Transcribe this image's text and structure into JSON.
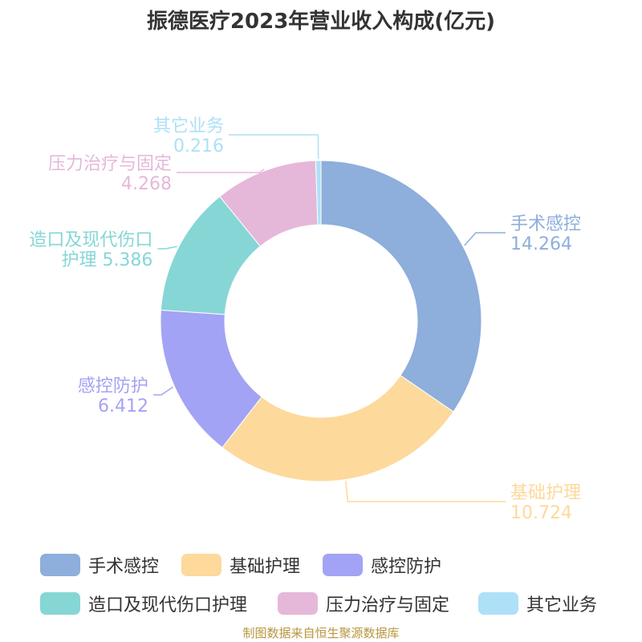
{
  "chart_data": {
    "type": "pie",
    "variant": "donut",
    "title": "振德医疗2023年营业收入构成(亿元)",
    "series": [
      {
        "name": "手术感控",
        "value": 14.264,
        "value_label": "14.264",
        "color": "#8eaedb"
      },
      {
        "name": "基础护理",
        "value": 10.724,
        "value_label": "10.724",
        "color": "#fdd99b"
      },
      {
        "name": "感控防护",
        "value": 6.412,
        "value_label": "6.412",
        "color": "#a3a3f5"
      },
      {
        "name": "造口及现代伤口护理",
        "value": 5.386,
        "value_label": "5.386",
        "color": "#86d6d6",
        "label_lines": [
          "造口及现代伤口",
          "护理 5.386"
        ]
      },
      {
        "name": "压力治疗与固定",
        "value": 4.268,
        "value_label": "4.268",
        "color": "#e5b8d9"
      },
      {
        "name": "其它业务",
        "value": 0.216,
        "value_label": "0.216",
        "color": "#aee0f7"
      }
    ],
    "legend_position": "bottom",
    "source_note": "制图数据来自恒生聚源数据库"
  }
}
